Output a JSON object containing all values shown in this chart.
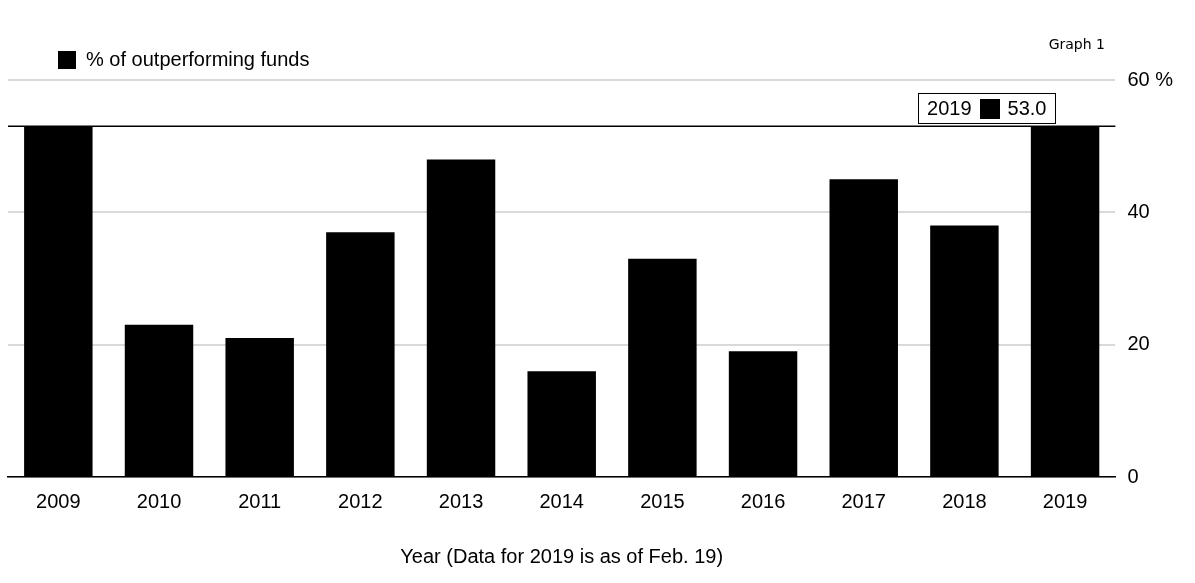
{
  "chart_data": {
    "type": "bar",
    "annotations": [
      "Graph 1",
      "2019"
    ],
    "xlabel": "Year (Data for 2019 is as of Feb. 19)",
    "categories": [
      "2009",
      "2010",
      "2011",
      "2012",
      "2013",
      "2014",
      "2015",
      "2016",
      "2017",
      "2018",
      "2019"
    ],
    "series": [
      {
        "name": "% of outperforming funds",
        "color": "#000000",
        "values": [
          53,
          23,
          21,
          37,
          48,
          16,
          33,
          19,
          45,
          38,
          53
        ],
        "value_labels": [
          null,
          null,
          null,
          null,
          null,
          null,
          null,
          null,
          null,
          null,
          "53.0"
        ]
      }
    ],
    "ylim": [
      0,
      60
    ],
    "yticks": [
      0,
      20,
      40,
      {
        "value": 60,
        "label": "60 %"
      }
    ],
    "ref_lines": [
      {
        "axis": "y",
        "value": 53,
        "color": "#000000"
      }
    ],
    "grid": "y",
    "legend": "top left"
  }
}
